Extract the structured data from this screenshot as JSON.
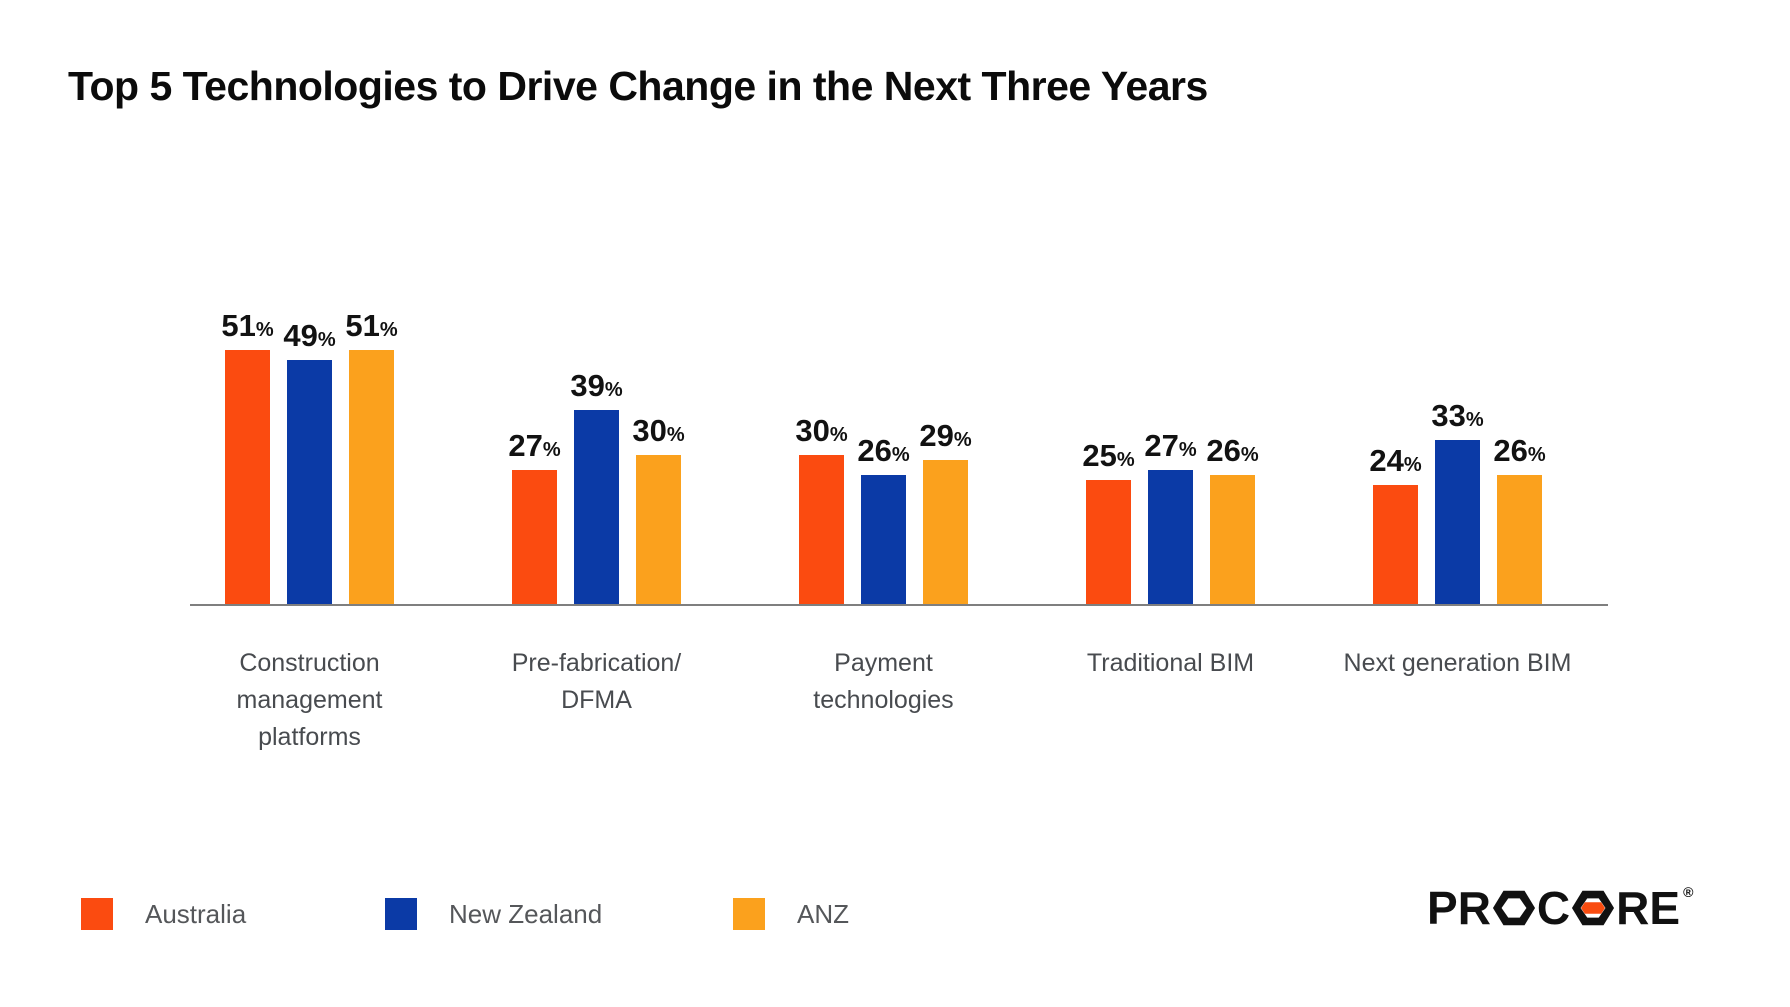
{
  "title": "Top 5 Technologies to Drive Change in the Next Three Years",
  "chart_data": {
    "type": "bar",
    "title": "Top 5 Technologies to Drive Change in the Next Three Years",
    "categories": [
      "Construction management platforms",
      "Pre-fabrication/DFMA",
      "Payment technologies",
      "Traditional BIM",
      "Next generation BIM"
    ],
    "category_label_lines": [
      [
        "Construction",
        "management",
        "platforms"
      ],
      [
        "Pre-fabrication/",
        "DFMA"
      ],
      [
        "Payment",
        "technologies"
      ],
      [
        "Traditional BIM"
      ],
      [
        "Next generation BIM"
      ]
    ],
    "series": [
      {
        "name": "Australia",
        "color": "#FB4B10",
        "values": [
          51,
          27,
          30,
          25,
          24
        ]
      },
      {
        "name": "New Zealand",
        "color": "#0B3AA6",
        "values": [
          49,
          39,
          26,
          27,
          33
        ]
      },
      {
        "name": "ANZ",
        "color": "#FBA11D",
        "values": [
          51,
          30,
          29,
          26,
          26
        ]
      }
    ],
    "value_suffix": "%",
    "ylim": [
      0,
      60
    ],
    "grid": false,
    "y_axis_visible": false,
    "legend_position": "bottom-left",
    "axis_line_color": "#7F7F7F"
  },
  "legend": {
    "items": [
      {
        "label": "Australia",
        "color": "#FB4B10"
      },
      {
        "label": "New Zealand",
        "color": "#0B3AA6"
      },
      {
        "label": "ANZ",
        "color": "#FBA11D"
      }
    ]
  },
  "branding": {
    "logo_text": "PROCORE",
    "registered_mark": "®",
    "logo_color": "#111111",
    "logo_accent_color": "#F94C10"
  }
}
